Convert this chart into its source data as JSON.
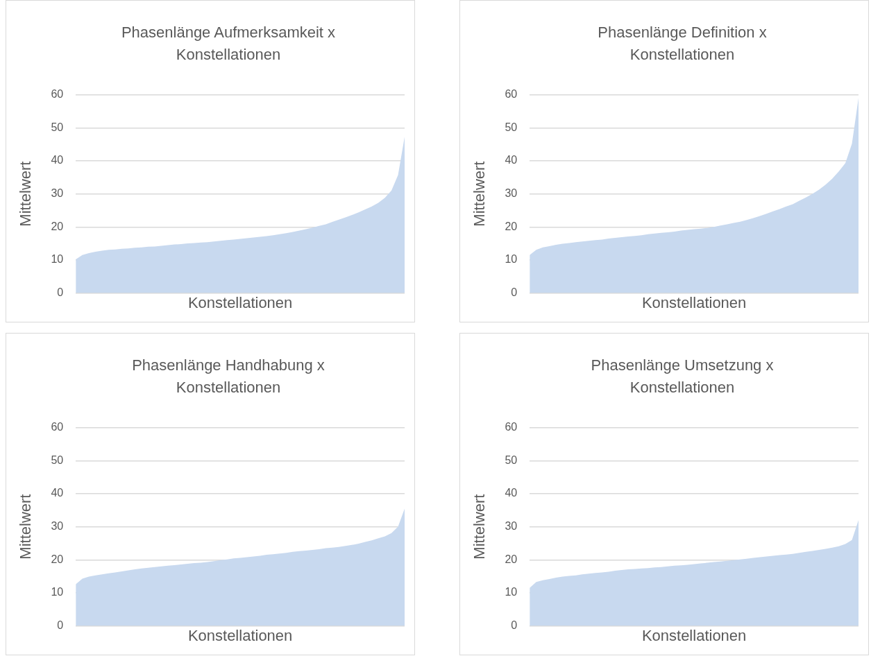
{
  "chart_data": [
    {
      "type": "area",
      "title": "Phasenlänge Aufmerksamkeit x Konstellationen",
      "xlabel": "Konstellationen",
      "ylabel": "Mittelwert",
      "ylim": [
        0,
        60
      ],
      "yticks": [
        0,
        10,
        20,
        30,
        40,
        50,
        60
      ],
      "grid": "y",
      "tick_labels": "y",
      "color": "#c8d9ef",
      "categories": [
        null,
        null,
        null,
        null,
        null,
        null,
        null,
        null,
        null,
        null,
        null,
        null,
        null,
        null,
        null,
        null,
        null,
        null,
        null,
        null,
        null,
        null,
        null,
        null,
        null,
        null,
        null,
        null,
        null,
        null,
        null,
        null,
        null,
        null,
        null,
        null,
        null,
        null,
        null,
        null,
        null,
        null,
        null,
        null,
        null,
        null,
        null,
        null,
        null,
        null,
        null
      ],
      "values": [
        10.2,
        11.5,
        12.1,
        12.5,
        12.8,
        13.1,
        13.2,
        13.4,
        13.5,
        13.7,
        13.8,
        14.0,
        14.1,
        14.3,
        14.5,
        14.7,
        14.8,
        15.0,
        15.1,
        15.3,
        15.4,
        15.6,
        15.8,
        16.0,
        16.2,
        16.4,
        16.6,
        16.8,
        17.0,
        17.2,
        17.5,
        17.8,
        18.1,
        18.5,
        18.9,
        19.3,
        19.8,
        20.3,
        20.8,
        21.5,
        22.2,
        22.9,
        23.6,
        24.4,
        25.3,
        26.2,
        27.3,
        28.8,
        31.0,
        35.7,
        47.3
      ]
    },
    {
      "type": "area",
      "title": "Phasenlänge Definition x Konstellationen",
      "xlabel": "Konstellationen",
      "ylabel": "Mittelwert",
      "ylim": [
        0,
        60
      ],
      "yticks": [
        0,
        10,
        20,
        30,
        40,
        50,
        60
      ],
      "grid": "y",
      "tick_labels": "y",
      "color": "#c8d9ef",
      "categories": [
        null,
        null,
        null,
        null,
        null,
        null,
        null,
        null,
        null,
        null,
        null,
        null,
        null,
        null,
        null,
        null,
        null,
        null,
        null,
        null,
        null,
        null,
        null,
        null,
        null,
        null,
        null,
        null,
        null,
        null,
        null,
        null,
        null,
        null,
        null,
        null,
        null,
        null,
        null,
        null,
        null,
        null,
        null,
        null,
        null,
        null,
        null,
        null,
        null,
        null,
        null
      ],
      "values": [
        11.5,
        13.1,
        13.8,
        14.2,
        14.6,
        14.9,
        15.1,
        15.4,
        15.6,
        15.8,
        16.0,
        16.2,
        16.5,
        16.7,
        16.9,
        17.1,
        17.3,
        17.5,
        17.8,
        18.0,
        18.2,
        18.4,
        18.6,
        18.9,
        19.1,
        19.3,
        19.5,
        19.7,
        20.0,
        20.4,
        20.8,
        21.2,
        21.6,
        22.1,
        22.7,
        23.3,
        24.0,
        24.7,
        25.4,
        26.2,
        26.9,
        27.9,
        28.9,
        30.0,
        31.3,
        32.8,
        34.6,
        36.8,
        39.3,
        45.2,
        59
      ]
    },
    {
      "type": "area",
      "title": "Phasenlänge Handhabung x Konstellationen",
      "xlabel": "Konstellationen",
      "ylabel": "Mittelwert",
      "ylim": [
        0,
        60
      ],
      "yticks": [
        0,
        10,
        20,
        30,
        40,
        50,
        60
      ],
      "grid": "y",
      "tick_labels": "y",
      "color": "#c8d9ef",
      "categories": [
        null,
        null,
        null,
        null,
        null,
        null,
        null,
        null,
        null,
        null,
        null,
        null,
        null,
        null,
        null,
        null,
        null,
        null,
        null,
        null,
        null,
        null,
        null,
        null,
        null,
        null,
        null,
        null,
        null,
        null,
        null,
        null,
        null,
        null,
        null,
        null,
        null,
        null,
        null,
        null,
        null,
        null,
        null,
        null,
        null,
        null,
        null,
        null,
        null,
        null,
        null
      ],
      "values": [
        12.6,
        14.3,
        14.9,
        15.3,
        15.6,
        15.9,
        16.2,
        16.5,
        16.8,
        17.1,
        17.4,
        17.6,
        17.8,
        18.0,
        18.2,
        18.4,
        18.6,
        18.8,
        19.0,
        19.1,
        19.3,
        19.6,
        19.9,
        20.1,
        20.4,
        20.6,
        20.8,
        21.0,
        21.2,
        21.5,
        21.7,
        21.9,
        22.1,
        22.4,
        22.6,
        22.8,
        23.0,
        23.2,
        23.5,
        23.7,
        23.9,
        24.2,
        24.5,
        24.9,
        25.4,
        25.9,
        26.5,
        27.1,
        28.1,
        30.0,
        35.5
      ]
    },
    {
      "type": "area",
      "title": "Phasenlänge Umsetzung x Konstellationen",
      "xlabel": "Konstellationen",
      "ylabel": "Mittelwert",
      "ylim": [
        0,
        60
      ],
      "yticks": [
        0,
        10,
        20,
        30,
        40,
        50,
        60
      ],
      "grid": "y",
      "tick_labels": "y",
      "color": "#c8d9ef",
      "categories": [
        null,
        null,
        null,
        null,
        null,
        null,
        null,
        null,
        null,
        null,
        null,
        null,
        null,
        null,
        null,
        null,
        null,
        null,
        null,
        null,
        null,
        null,
        null,
        null,
        null,
        null,
        null,
        null,
        null,
        null,
        null,
        null,
        null,
        null,
        null,
        null,
        null,
        null,
        null,
        null,
        null,
        null,
        null,
        null,
        null,
        null,
        null,
        null,
        null,
        null,
        null
      ],
      "values": [
        11.5,
        13.3,
        13.8,
        14.2,
        14.6,
        14.9,
        15.1,
        15.3,
        15.6,
        15.8,
        16.0,
        16.2,
        16.4,
        16.7,
        16.9,
        17.1,
        17.2,
        17.4,
        17.5,
        17.7,
        17.8,
        18.0,
        18.2,
        18.3,
        18.5,
        18.7,
        18.9,
        19.1,
        19.3,
        19.5,
        19.7,
        19.9,
        20.1,
        20.3,
        20.6,
        20.8,
        21.0,
        21.2,
        21.4,
        21.6,
        21.8,
        22.1,
        22.4,
        22.7,
        23.0,
        23.3,
        23.7,
        24.1,
        24.8,
        26.0,
        32
      ]
    }
  ]
}
